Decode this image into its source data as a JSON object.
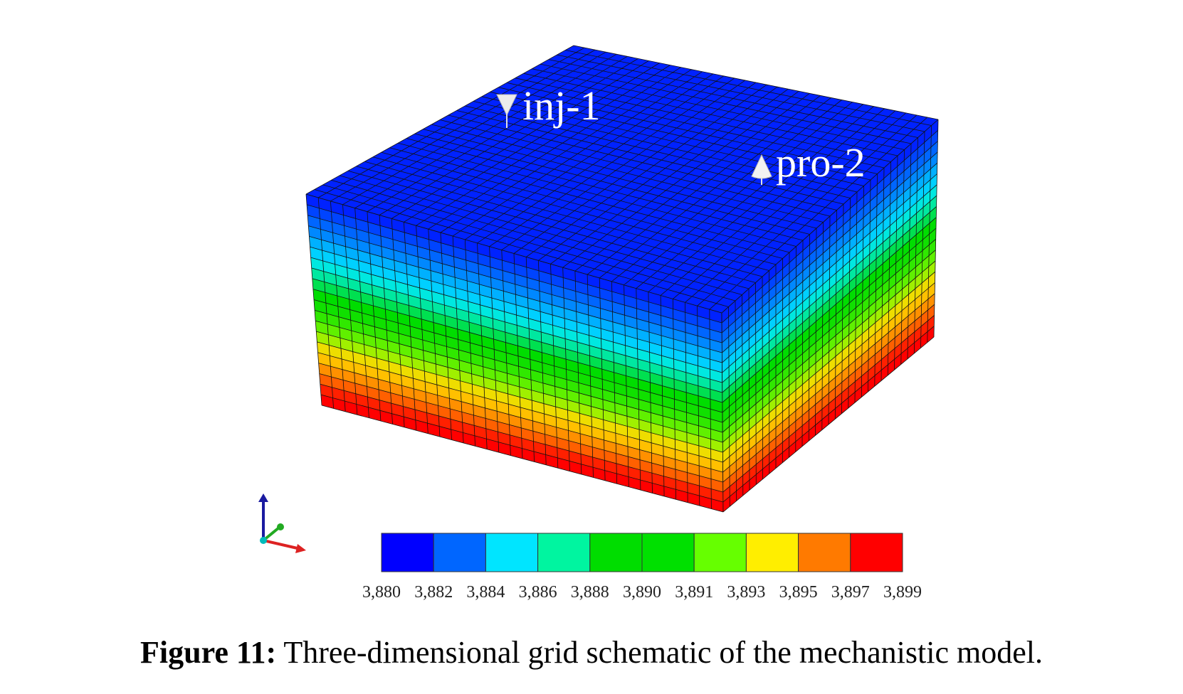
{
  "figure": {
    "wells": [
      {
        "name": "inj-1",
        "type": "injector"
      },
      {
        "name": "pro-2",
        "type": "producer"
      }
    ],
    "colorbar": {
      "colors": [
        "#0000ff",
        "#0066ff",
        "#00e5ff",
        "#00f5a0",
        "#00dd00",
        "#00e000",
        "#66ff00",
        "#ffee00",
        "#ff7a00",
        "#ff0000"
      ],
      "ticks": [
        "3,880",
        "3,882",
        "3,884",
        "3,886",
        "3,888",
        "3,890",
        "3,891",
        "3,893",
        "3,895",
        "3,897",
        "3,899"
      ]
    },
    "layer_colors": [
      "#0022ff",
      "#0044ff",
      "#0066ff",
      "#0088ff",
      "#00b0ff",
      "#00d0ff",
      "#00e8e0",
      "#00e8a0",
      "#00e050",
      "#00dd00",
      "#10e000",
      "#30e800",
      "#60f000",
      "#a0f000",
      "#eedd00",
      "#ffc000",
      "#ff9000",
      "#ff6000",
      "#ff2000",
      "#ff0000"
    ],
    "axes": {
      "z_color": "#1a1aa0",
      "y_color": "#22aa22",
      "x_color": "#dd2222",
      "origin_color": "#00bbbb"
    }
  },
  "caption": {
    "label": "Figure 11:",
    "text": " Three-dimensional grid schematic of the mechanistic model."
  }
}
